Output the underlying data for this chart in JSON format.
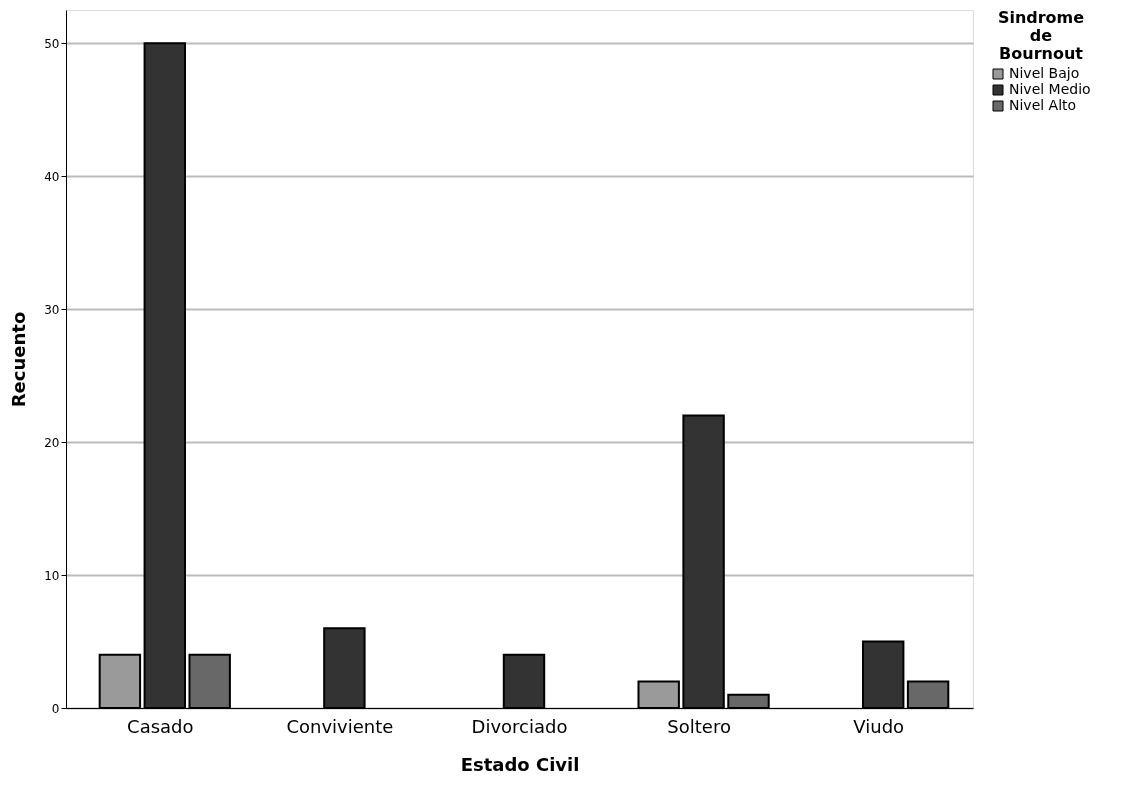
{
  "chart_data": {
    "type": "bar",
    "xlabel": "Estado Civil",
    "ylabel": "Recuento",
    "legend_title": "Sindrome de Bournout",
    "categories": [
      "Casado",
      "Conviviente",
      "Divorciado",
      "Soltero",
      "Viudo"
    ],
    "series": [
      {
        "name": "Nivel Bajo",
        "color": "#9a9a9a",
        "values": [
          4,
          null,
          null,
          2,
          null
        ]
      },
      {
        "name": "Nivel Medio",
        "color": "#333333",
        "values": [
          50,
          6,
          4,
          22,
          5
        ]
      },
      {
        "name": "Nivel Alto",
        "color": "#686868",
        "values": [
          4,
          null,
          null,
          1,
          2
        ]
      }
    ],
    "ylim": [
      0,
      52.5
    ],
    "yticks": [
      0,
      10,
      20,
      30,
      40,
      50
    ],
    "grid": "y",
    "legend": "top right"
  }
}
